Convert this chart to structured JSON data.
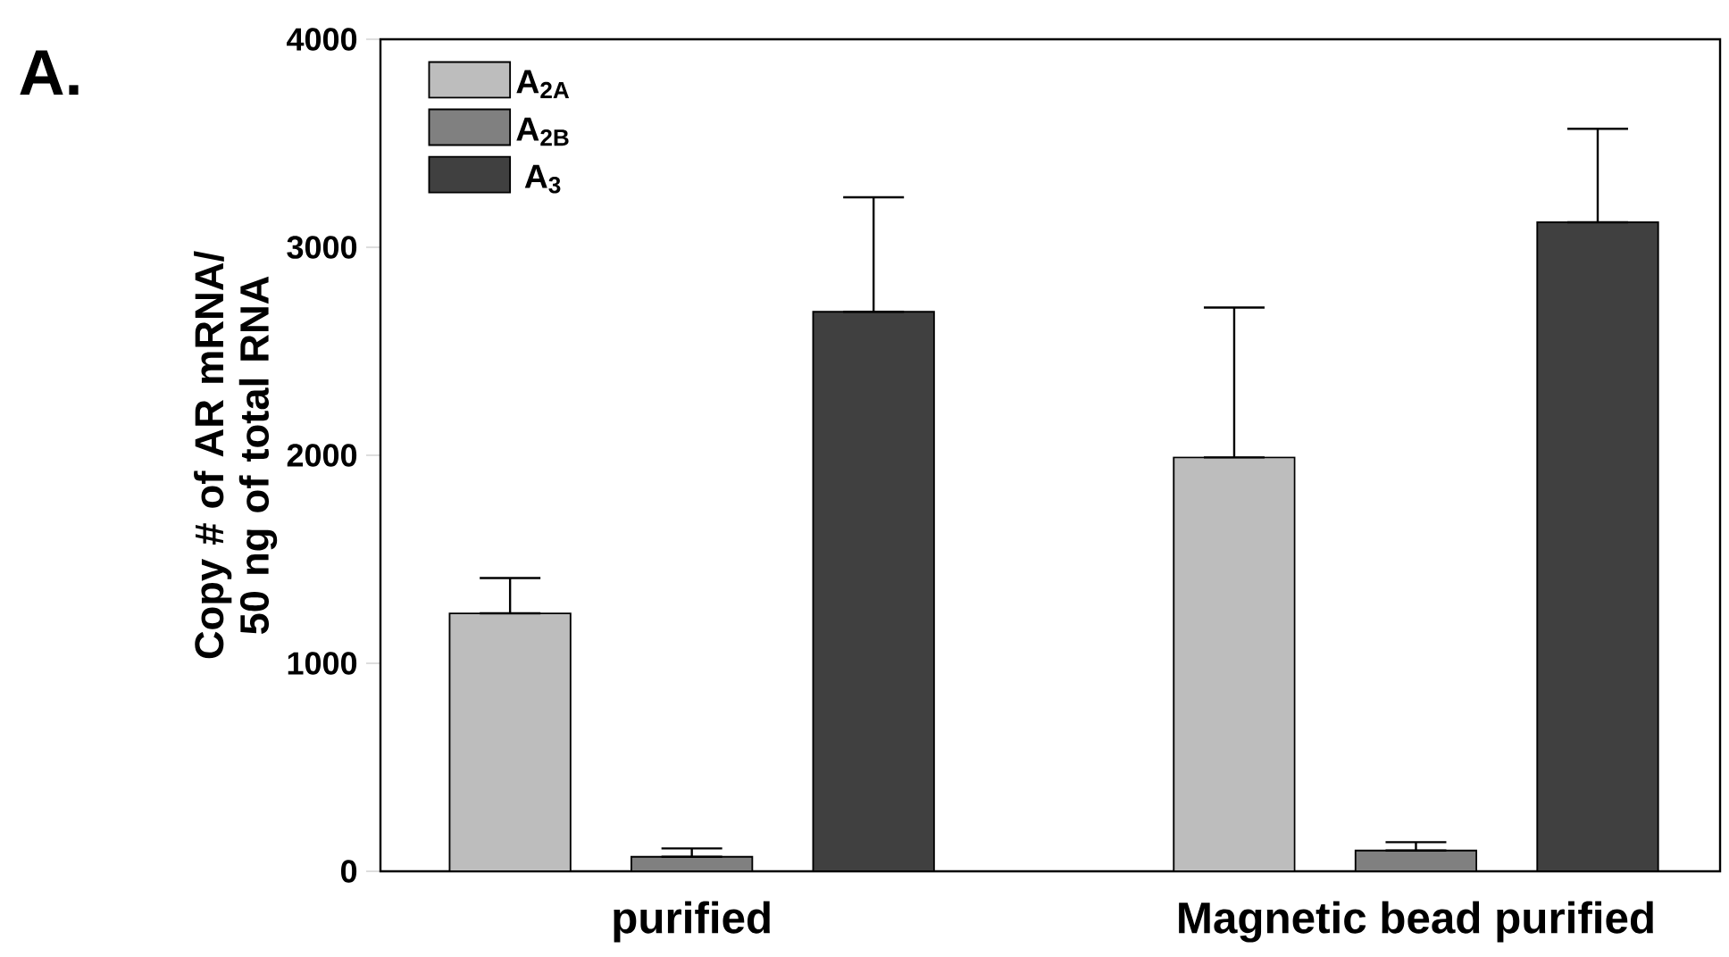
{
  "chart_data": {
    "type": "bar",
    "categories": [
      "purified",
      "Magnetic bead purified"
    ],
    "ylabel": "Copy # of AR mRNA/ 50 ng of total RNA",
    "annotations": [
      "A."
    ],
    "series": [
      {
        "name": "A$_{2A}$",
        "color": "#bdbdbd",
        "values": [
          1240,
          1990
        ],
        "errors": [
          [
            1240,
            1410
          ],
          [
            1990,
            2710
          ]
        ]
      },
      {
        "name": "A$_{2B}$",
        "color": "#808080",
        "values": [
          70,
          100
        ],
        "errors": [
          [
            70,
            110
          ],
          [
            100,
            140
          ]
        ]
      },
      {
        "name": "A$_{3}$",
        "color": "#404040",
        "values": [
          2690,
          3120
        ],
        "errors": [
          [
            2690,
            3240
          ],
          [
            3120,
            3570
          ]
        ]
      }
    ],
    "ylim": [
      0,
      4000
    ],
    "yticks": [
      0,
      1000,
      2000,
      3000,
      4000
    ],
    "grid": false,
    "legend": "top left"
  }
}
